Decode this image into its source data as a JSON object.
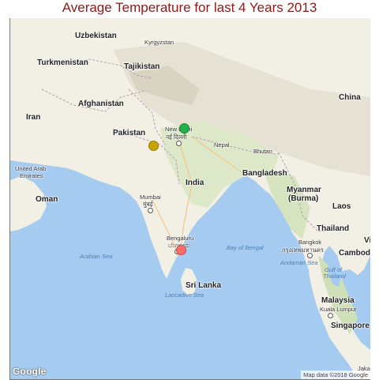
{
  "title": "Average Temperature for last 4 Years 2013",
  "map": {
    "attribution": "Map data ©2018 Google",
    "logo": "Google",
    "labels": {
      "uzbekistan": "Uzbekistan",
      "kyrgyzstan": "Kyrgyzstan",
      "turkmenistan": "Turkmenistan",
      "tajikistan": "Tajikistan",
      "afghanistan": "Afghanistan",
      "china": "China",
      "iran": "Iran",
      "pakistan": "Pakistan",
      "new_delhi": "New Delhi",
      "new_delhi_hi": "नई दिल्ली",
      "nepal": "Nepal",
      "bhutan": "Bhutan",
      "uae_1": "United Arab",
      "uae_2": "Emirates",
      "india": "India",
      "bangladesh": "Bangladesh",
      "oman": "Oman",
      "myanmar_1": "Myanmar",
      "myanmar_2": "(Burma)",
      "mumbai": "Mumbai",
      "mumbai_hi": "मुंबई",
      "laos": "Laos",
      "thailand": "Thailand",
      "viet": "Vi",
      "bengaluru": "Bengaluru",
      "bengaluru_kn": "ಬೆಂಗಳೂರು",
      "bangkok": "Bangkok",
      "bangkok_th": "กรุงเทพมหานคร",
      "cambodia": "Cambodi",
      "arabian_sea": "Arabian Sea",
      "bay_of_bengal": "Bay of Bengal",
      "andaman_sea": "Andaman Sea",
      "gulf_1": "Gulf of",
      "gulf_2": "Thailand",
      "sri_lanka": "Sri Lanka",
      "laccadive": "Laccadive Sea",
      "malaysia": "Malaysia",
      "kuala_lumpur": "Kuala Lumpur",
      "singapore": "Singapore",
      "jakarta": "Jaka"
    }
  },
  "markers": [
    {
      "location": "New Delhi region",
      "color": "#22b14c"
    },
    {
      "location": "Rajasthan region",
      "color": "#c8a400"
    },
    {
      "location": "Bengaluru region",
      "color": "#ff6b6b"
    }
  ]
}
